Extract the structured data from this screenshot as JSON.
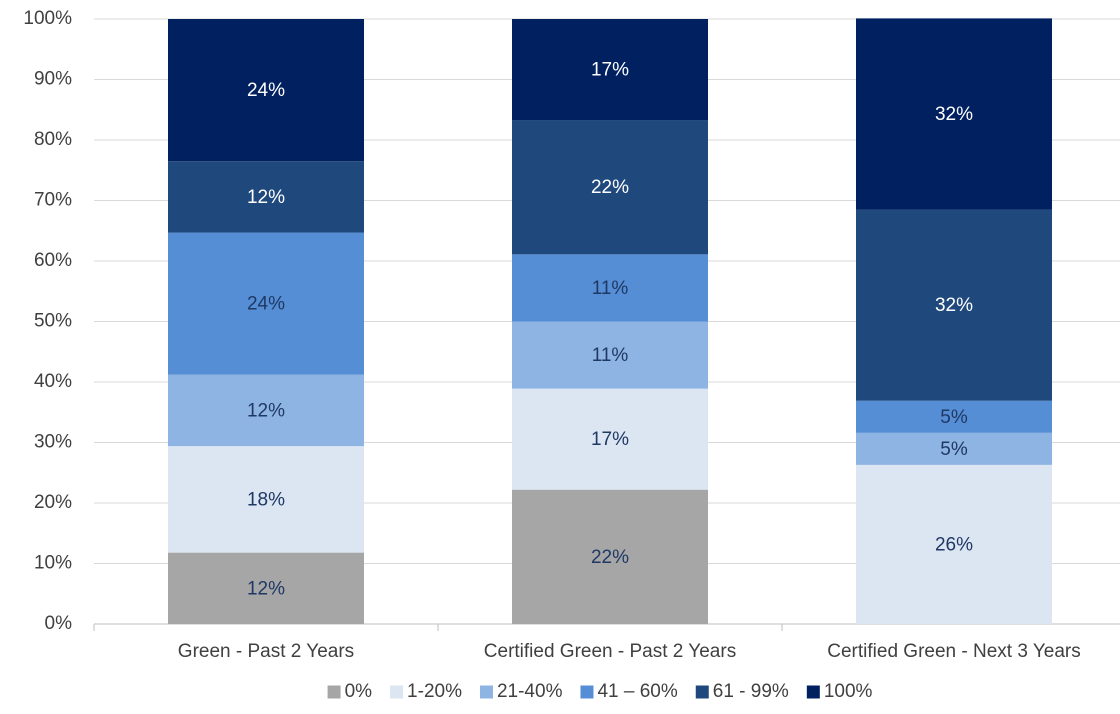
{
  "chart_data": {
    "type": "stacked_bar",
    "categories": [
      "Green - Past 2 Years",
      "Certified Green - Past 2 Years",
      "Certified Green - Next 3 Years"
    ],
    "series": [
      {
        "name": "0%",
        "color": "#a6a6a6",
        "label_color": "#1f3864",
        "values": [
          11.8,
          22.2,
          0
        ],
        "value_labels": [
          "12%",
          "22%",
          null
        ]
      },
      {
        "name": "1-20%",
        "color": "#dce6f2",
        "label_color": "#1f3864",
        "values": [
          17.6,
          16.7,
          26.3
        ],
        "value_labels": [
          "18%",
          "17%",
          "26%"
        ]
      },
      {
        "name": "21-40%",
        "color": "#8eb4e3",
        "label_color": "#1f3864",
        "values": [
          11.8,
          11.1,
          5.3
        ],
        "value_labels": [
          "12%",
          "11%",
          "5%"
        ]
      },
      {
        "name": "41 – 60%",
        "color": "#558ed5",
        "label_color": "#1f3864",
        "values": [
          23.5,
          11.1,
          5.3
        ],
        "value_labels": [
          "24%",
          "11%",
          "5%"
        ]
      },
      {
        "name": "61 - 99%",
        "color": "#1f497d",
        "label_color": "#ffffff",
        "values": [
          11.8,
          22.2,
          31.6
        ],
        "value_labels": [
          "12%",
          "22%",
          "32%"
        ]
      },
      {
        "name": "100%",
        "color": "#002060",
        "label_color": "#ffffff",
        "values": [
          23.5,
          16.7,
          31.6
        ],
        "value_labels": [
          "24%",
          "17%",
          "32%"
        ]
      }
    ],
    "ylim": [
      0,
      100
    ],
    "yticks": [
      {
        "value": 0,
        "label": "0%"
      },
      {
        "value": 10,
        "label": "10%"
      },
      {
        "value": 20,
        "label": "20%"
      },
      {
        "value": 30,
        "label": "30%"
      },
      {
        "value": 40,
        "label": "40%"
      },
      {
        "value": 50,
        "label": "50%"
      },
      {
        "value": 60,
        "label": "60%"
      },
      {
        "value": 70,
        "label": "70%"
      },
      {
        "value": 80,
        "label": "80%"
      },
      {
        "value": 90,
        "label": "90%"
      },
      {
        "value": 100,
        "label": "100%"
      }
    ],
    "grid": true,
    "legend": "bottom"
  }
}
